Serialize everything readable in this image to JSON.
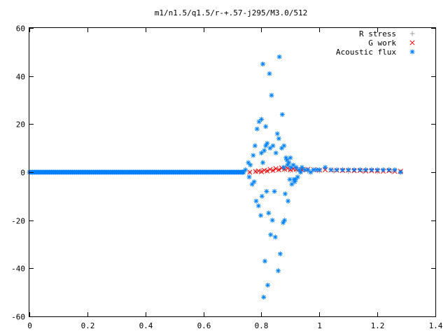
{
  "chart_data": {
    "type": "scatter",
    "title": "m1/n1.5/q1.5/r-+.57-j295/M3.0/512",
    "xlabel": "",
    "ylabel": "",
    "xlim": [
      0,
      1.4
    ],
    "ylim": [
      -60,
      60
    ],
    "xticks": [
      "0",
      "0.2",
      "0.4",
      "0.6",
      "0.8",
      "1",
      "1.2",
      "1.4"
    ],
    "yticks": [
      "60",
      "40",
      "20",
      "0",
      "-20",
      "-40",
      "-60"
    ],
    "legend_position": "top-right",
    "grid": false,
    "series": [
      {
        "name": "R stress",
        "marker": "plus",
        "color": "#a0a0a0",
        "x": [
          0.76,
          0.78,
          0.8,
          0.82,
          0.84,
          0.86,
          0.88,
          0.9,
          0.92,
          0.94,
          0.96,
          1.0,
          1.05,
          1.1,
          1.15,
          1.2,
          1.25,
          1.28
        ],
        "y": [
          0,
          0.3,
          0.5,
          0.6,
          0.8,
          1.0,
          0.9,
          0.7,
          0.6,
          0.5,
          0.4,
          0.5,
          0.4,
          0.3,
          0.3,
          0.2,
          0.2,
          0.1
        ]
      },
      {
        "name": "G work",
        "marker": "cross",
        "color": "#ff0000",
        "x": [
          0.76,
          0.78,
          0.79,
          0.8,
          0.81,
          0.82,
          0.83,
          0.84,
          0.85,
          0.86,
          0.87,
          0.88,
          0.89,
          0.9,
          0.91,
          0.92,
          0.94,
          0.96,
          0.98,
          1.0,
          1.02,
          1.04,
          1.06,
          1.08,
          1.1,
          1.12,
          1.14,
          1.16,
          1.18,
          1.2,
          1.22,
          1.24,
          1.26,
          1.28
        ],
        "y": [
          0,
          0.3,
          0.5,
          0.2,
          0.8,
          0.5,
          1.2,
          0.7,
          1.5,
          1.0,
          1.8,
          1.2,
          1.6,
          1.0,
          1.4,
          1.2,
          1.0,
          1.2,
          1.0,
          0.8,
          1.0,
          0.9,
          0.8,
          0.7,
          0.8,
          0.6,
          0.7,
          0.5,
          0.6,
          0.5,
          0.4,
          0.6,
          0.3,
          0.4
        ]
      },
      {
        "name": "Acoustic flux",
        "marker": "star",
        "color": "#0080ff",
        "x": [
          0.733,
          0.745,
          0.755,
          0.758,
          0.762,
          0.768,
          0.772,
          0.775,
          0.778,
          0.782,
          0.785,
          0.79,
          0.792,
          0.798,
          0.8,
          0.8,
          0.802,
          0.805,
          0.805,
          0.808,
          0.81,
          0.812,
          0.815,
          0.815,
          0.818,
          0.82,
          0.822,
          0.825,
          0.828,
          0.83,
          0.832,
          0.835,
          0.838,
          0.84,
          0.845,
          0.848,
          0.85,
          0.855,
          0.858,
          0.86,
          0.862,
          0.865,
          0.87,
          0.872,
          0.875,
          0.877,
          0.878,
          0.88,
          0.882,
          0.885,
          0.888,
          0.89,
          0.892,
          0.895,
          0.898,
          0.9,
          0.902,
          0.905,
          0.91,
          0.912,
          0.915,
          0.918,
          0.92,
          0.925,
          0.93,
          0.935,
          0.94,
          0.95,
          0.96,
          0.97,
          0.98,
          0.99,
          1.0,
          1.02,
          1.04,
          1.06,
          1.08,
          1.1,
          1.12,
          1.14,
          1.16,
          1.18,
          1.2,
          1.22,
          1.24,
          1.26,
          1.28
        ],
        "y": [
          0,
          1,
          4,
          -2,
          3,
          -5,
          7,
          -4,
          11,
          -12,
          18,
          -14,
          21,
          -18,
          22,
          8,
          -10,
          4,
          45,
          -52,
          9,
          -37,
          19,
          11,
          -8,
          12,
          -47,
          -17,
          41,
          10,
          -26,
          32,
          -20,
          11,
          -8,
          -27,
          8,
          16,
          -41,
          14,
          48,
          -34,
          10,
          24,
          -21,
          2,
          11,
          -20,
          -9,
          6,
          5,
          3,
          -12,
          4,
          -3,
          6,
          2,
          -5,
          3,
          -3,
          -4,
          -3,
          2,
          -2,
          1,
          0,
          2,
          1,
          1,
          0,
          1,
          1,
          1,
          2,
          1,
          1,
          1,
          1,
          1,
          1,
          1,
          1,
          1,
          1,
          1,
          1,
          0
        ]
      }
    ]
  }
}
